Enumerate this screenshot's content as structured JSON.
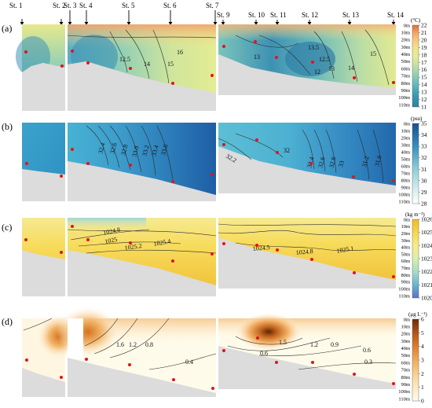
{
  "stations": [
    "St. 1",
    "St. 2",
    "St. 3",
    "St. 4",
    "St. 5",
    "St. 6",
    "St. 7",
    "St. 9",
    "St. 10",
    "St. 11",
    "St. 12",
    "St. 13",
    "St. 14"
  ],
  "depth_labels": [
    "0m",
    "10m",
    "20m",
    "30m",
    "40m",
    "50m",
    "60m",
    "70m",
    "80m",
    "90m",
    "100m",
    "110m"
  ],
  "colors": {
    "seafloor": "#dcdcdc",
    "sample_point": "#e0141e",
    "contour_line": "#2b2b2b"
  },
  "chart_data": [
    {
      "type": "heatmap",
      "panel": "(a)",
      "variable": "temperature",
      "unit": "(°C)",
      "colorbar_ticks": [
        "11",
        "12",
        "13",
        "14",
        "15",
        "16",
        "17",
        "18",
        "19",
        "20",
        "21",
        "22"
      ],
      "colorbar_range": [
        11,
        22
      ],
      "colorscale": [
        "#2d7fa4",
        "#3c9bb6",
        "#6cbfbd",
        "#9fd3b1",
        "#c8e2a0",
        "#e5ec96",
        "#f3e18c",
        "#f7c97d",
        "#f4a866",
        "#ee8953",
        "#e8693f"
      ],
      "contour_labels": [
        "12.5",
        "14",
        "15",
        "16",
        "13",
        "13.5",
        "15",
        "12.5",
        "13",
        "12",
        "14"
      ]
    },
    {
      "type": "heatmap",
      "panel": "(b)",
      "variable": "salinity",
      "unit": "(psu)",
      "colorbar_ticks": [
        "28",
        "29",
        "30",
        "31",
        "32",
        "33",
        "34",
        "35"
      ],
      "colorbar_range": [
        28,
        35
      ],
      "colorscale": [
        "#ffffff",
        "#dff0f2",
        "#b7e0e6",
        "#8ccbd7",
        "#5fb0ca",
        "#3b92bd",
        "#2572b0",
        "#164f94"
      ],
      "contour_labels": [
        "32.4",
        "32.6",
        "32.8",
        "33.0",
        "33.2",
        "33.4",
        "33.6",
        "32.2",
        "32",
        "32.4",
        "32.6",
        "32.8",
        "33",
        "31.2",
        "31.6"
      ]
    },
    {
      "type": "heatmap",
      "panel": "(c)",
      "variable": "density",
      "unit": "(kg m⁻³)",
      "colorbar_ticks": [
        "1020",
        "1021",
        "1022",
        "1023",
        "1024",
        "1025",
        "1026"
      ],
      "colorbar_range": [
        1020,
        1026
      ],
      "colorscale": [
        "#5a72c8",
        "#6bb6d4",
        "#a6dbc7",
        "#dcefa9",
        "#f7ec8a",
        "#f8d64a",
        "#f1b92a"
      ],
      "contour_labels": [
        "1024.8",
        "1025",
        "1025.2",
        "1025.4",
        "1024.5",
        "1024.8",
        "1025.1"
      ]
    },
    {
      "type": "heatmap",
      "panel": "(d)",
      "variable": "chlorophyll",
      "unit": "(μg L⁻¹)",
      "colorbar_ticks": [
        "0",
        "1",
        "2",
        "3",
        "4",
        "5",
        "6"
      ],
      "colorbar_range": [
        0,
        6
      ],
      "colorscale": [
        "#fffbea",
        "#fde9c2",
        "#f9cf91",
        "#f1aa5c",
        "#dd7c2e",
        "#b4541a",
        "#6a2e0a"
      ],
      "contour_labels": [
        "1.6",
        "1.2",
        "0.8",
        "0.4",
        "1.5",
        "1.2",
        "0.9",
        "0.6",
        "0.6",
        "0.3"
      ]
    }
  ]
}
